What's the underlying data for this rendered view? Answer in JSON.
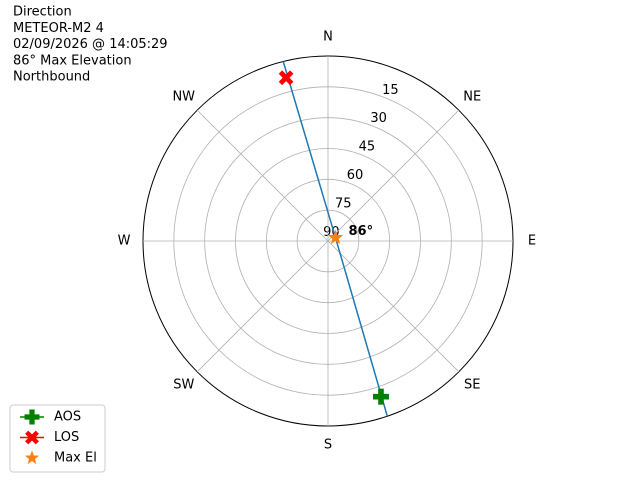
{
  "chart_data": {
    "type": "polar",
    "title_lines": [
      "Direction",
      "METEOR-M2 4",
      "02/09/2026 @ 14:05:29",
      "86° Max Elevation",
      "Northbound"
    ],
    "rlim": [
      90,
      0
    ],
    "rticks": [
      15,
      30,
      45,
      60,
      75,
      90
    ],
    "thetaticks": [
      {
        "value": 0,
        "label": "N"
      },
      {
        "value": 45,
        "label": "NE"
      },
      {
        "value": 90,
        "label": "E"
      },
      {
        "value": 135,
        "label": "SE"
      },
      {
        "value": 180,
        "label": "S"
      },
      {
        "value": 225,
        "label": "SW"
      },
      {
        "value": 270,
        "label": "W"
      },
      {
        "value": 315,
        "label": "NW"
      }
    ],
    "grid": true,
    "track": {
      "color": "#1f77b4",
      "azimuth": [
        161.3,
        66,
        346
      ],
      "elevation": [
        0,
        86,
        0
      ]
    },
    "series": [
      {
        "name": "AOS",
        "marker": "plus",
        "color": "#008000",
        "azimuth": [
          161.2
        ],
        "elevation": [
          10
        ]
      },
      {
        "name": "LOS",
        "marker": "x",
        "color": "#ff0000",
        "azimuth": [
          345.6
        ],
        "elevation": [
          8
        ]
      },
      {
        "name": "Max El",
        "marker": "star",
        "color": "#ff7f0e",
        "azimuth": [
          66
        ],
        "elevation": [
          86
        ]
      }
    ],
    "annotation": {
      "text": "86°",
      "azimuth": 66,
      "elevation": 86
    },
    "legend": "lower left"
  }
}
